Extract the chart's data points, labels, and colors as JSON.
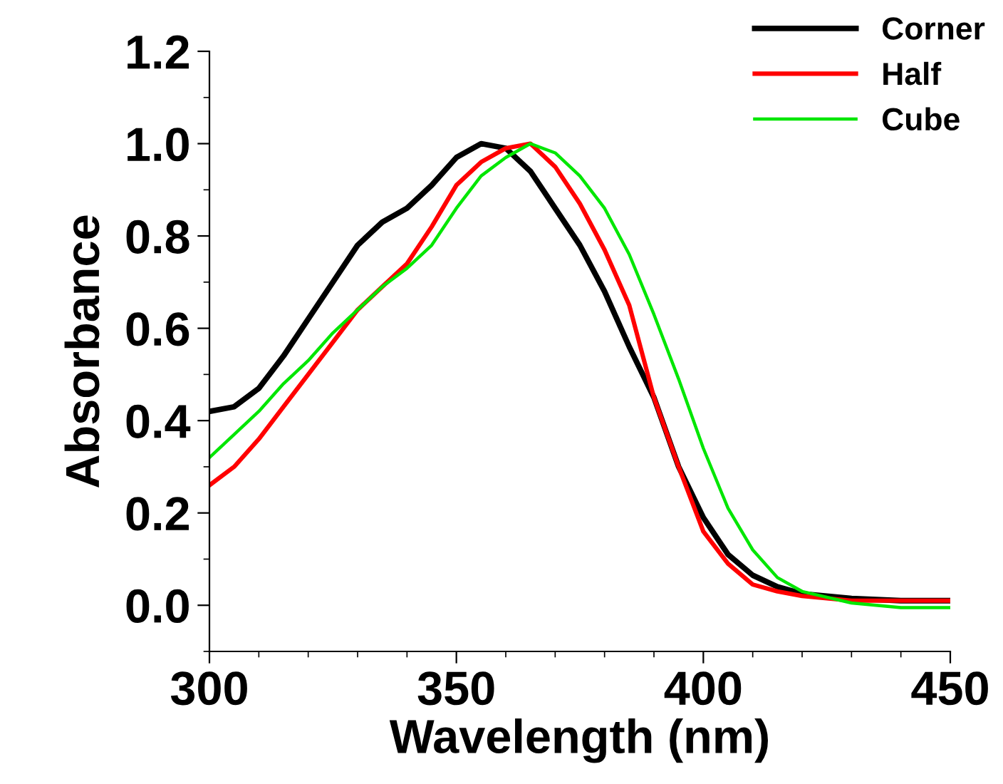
{
  "chart_data": {
    "type": "line",
    "xlabel": "Wavelength (nm)",
    "ylabel": "Absorbance",
    "x": [
      300,
      305,
      310,
      315,
      320,
      325,
      330,
      335,
      340,
      345,
      350,
      355,
      360,
      365,
      370,
      375,
      380,
      385,
      390,
      395,
      400,
      405,
      410,
      415,
      420,
      430,
      440,
      450
    ],
    "series": [
      {
        "name": "Corner",
        "color": "#000000",
        "values": [
          0.42,
          0.43,
          0.47,
          0.54,
          0.62,
          0.7,
          0.78,
          0.83,
          0.86,
          0.91,
          0.97,
          1.0,
          0.99,
          0.94,
          0.86,
          0.78,
          0.68,
          0.56,
          0.45,
          0.3,
          0.19,
          0.11,
          0.065,
          0.04,
          0.025,
          0.015,
          0.01,
          0.01
        ]
      },
      {
        "name": "Half",
        "color": "#ff0000",
        "values": [
          0.26,
          0.3,
          0.36,
          0.43,
          0.5,
          0.57,
          0.64,
          0.69,
          0.74,
          0.82,
          0.91,
          0.96,
          0.99,
          1.0,
          0.95,
          0.87,
          0.77,
          0.65,
          0.45,
          0.3,
          0.16,
          0.09,
          0.045,
          0.03,
          0.02,
          0.01,
          0.01,
          0.01
        ]
      },
      {
        "name": "Cube",
        "color": "#00e600",
        "values": [
          0.32,
          0.37,
          0.42,
          0.48,
          0.53,
          0.59,
          0.64,
          0.69,
          0.73,
          0.78,
          0.86,
          0.93,
          0.97,
          1.0,
          0.98,
          0.93,
          0.86,
          0.76,
          0.63,
          0.49,
          0.34,
          0.21,
          0.12,
          0.06,
          0.03,
          0.005,
          -0.005,
          -0.005
        ]
      }
    ],
    "xlim": [
      300,
      450
    ],
    "xticks": [
      300,
      350,
      400,
      450
    ],
    "ylim": [
      -0.1,
      1.2
    ],
    "yticks": [
      {
        "value": 0.0,
        "label": "0.0"
      },
      {
        "value": 0.2,
        "label": "0.2"
      },
      {
        "value": 0.4,
        "label": "0.4"
      },
      {
        "value": 0.6,
        "label": "0.6"
      },
      {
        "value": 0.8,
        "label": "0.8"
      },
      {
        "value": 1.0,
        "label": "1.0"
      },
      {
        "value": 1.2,
        "label": "1.2"
      }
    ],
    "legend": "top right",
    "grid": false,
    "marker": "none",
    "line_style": "solid"
  }
}
